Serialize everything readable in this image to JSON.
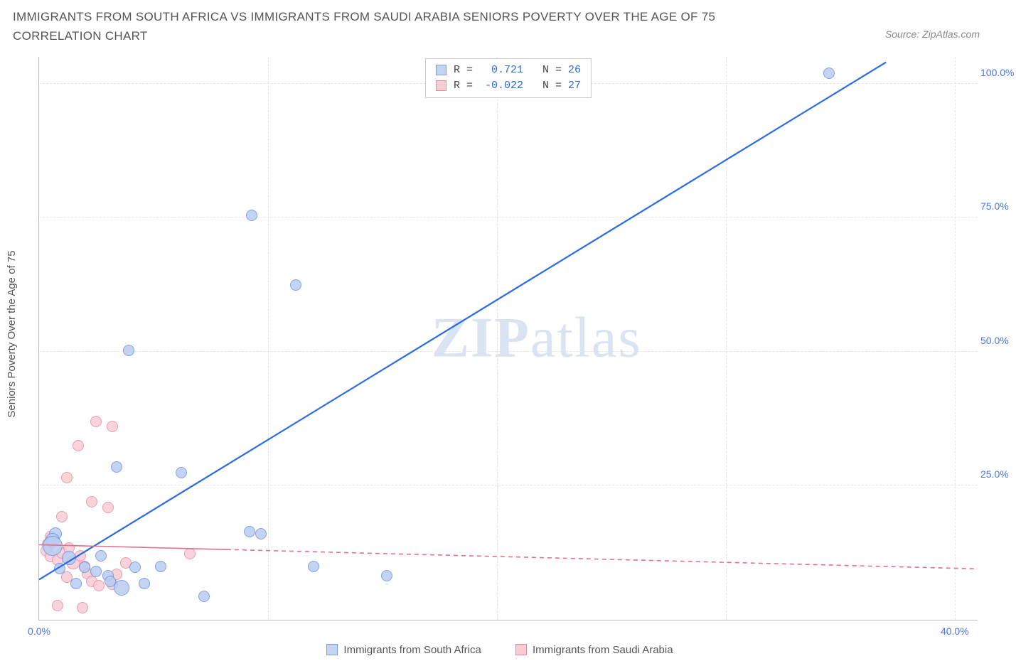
{
  "title": "IMMIGRANTS FROM SOUTH AFRICA VS IMMIGRANTS FROM SAUDI ARABIA SENIORS POVERTY OVER THE AGE OF 75 CORRELATION CHART",
  "source": "Source: ZipAtlas.com",
  "ylabel": "Seniors Poverty Over the Age of 75",
  "watermark_a": "ZIP",
  "watermark_b": "atlas",
  "chart": {
    "type": "scatter",
    "xlim": [
      0,
      41
    ],
    "ylim": [
      0,
      105
    ],
    "yticks": [
      {
        "v": 25,
        "label": "25.0%"
      },
      {
        "v": 50,
        "label": "50.0%"
      },
      {
        "v": 75,
        "label": "75.0%"
      },
      {
        "v": 100,
        "label": "100.0%"
      }
    ],
    "xticks": [
      {
        "v": 0,
        "label": "0.0%"
      },
      {
        "v": 40,
        "label": "40.0%"
      }
    ],
    "xgrid": [
      10,
      20,
      30,
      40
    ],
    "background_color": "#ffffff",
    "grid_color": "#e5e5e5",
    "axis_color": "#bbbbbb",
    "marker_border_width": 1.2,
    "series": [
      {
        "name": "Immigrants from South Africa",
        "color_fill": "#b9cdf2",
        "color_stroke": "#6a92e3",
        "legend_fill": "#c3d4f2",
        "legend_stroke": "#7ba0e6",
        "R": "0.721",
        "N": "26",
        "line": {
          "x1": 0,
          "y1": 7.5,
          "x2": 37,
          "y2": 104,
          "color": "#2b6be0",
          "width": 2.2,
          "dash": "none"
        },
        "points": [
          {
            "x": 34.5,
            "y": 102,
            "r": 8
          },
          {
            "x": 9.3,
            "y": 75.5,
            "r": 8
          },
          {
            "x": 11.2,
            "y": 62.5,
            "r": 8
          },
          {
            "x": 3.9,
            "y": 50.2,
            "r": 8
          },
          {
            "x": 3.4,
            "y": 28.5,
            "r": 8
          },
          {
            "x": 6.2,
            "y": 27.5,
            "r": 8
          },
          {
            "x": 9.2,
            "y": 16.5,
            "r": 8
          },
          {
            "x": 9.7,
            "y": 16.0,
            "r": 8
          },
          {
            "x": 0.7,
            "y": 16.0,
            "r": 9
          },
          {
            "x": 0.6,
            "y": 14.8,
            "r": 10
          },
          {
            "x": 0.6,
            "y": 13.8,
            "r": 14
          },
          {
            "x": 1.3,
            "y": 11.5,
            "r": 10
          },
          {
            "x": 2.0,
            "y": 9.8,
            "r": 8
          },
          {
            "x": 2.5,
            "y": 9.0,
            "r": 8
          },
          {
            "x": 3.0,
            "y": 8.2,
            "r": 8
          },
          {
            "x": 3.1,
            "y": 7.2,
            "r": 8
          },
          {
            "x": 4.2,
            "y": 9.8,
            "r": 8
          },
          {
            "x": 4.6,
            "y": 6.8,
            "r": 8
          },
          {
            "x": 3.6,
            "y": 6.0,
            "r": 11
          },
          {
            "x": 12.0,
            "y": 10.0,
            "r": 8
          },
          {
            "x": 15.2,
            "y": 8.2,
            "r": 8
          },
          {
            "x": 7.2,
            "y": 4.4,
            "r": 8
          },
          {
            "x": 1.6,
            "y": 6.7,
            "r": 8
          },
          {
            "x": 2.7,
            "y": 12.0,
            "r": 8
          },
          {
            "x": 0.9,
            "y": 9.5,
            "r": 8
          },
          {
            "x": 5.3,
            "y": 10.0,
            "r": 8
          }
        ]
      },
      {
        "name": "Immigrants from Saudi Arabia",
        "color_fill": "#f6cdd5",
        "color_stroke": "#e88aa0",
        "legend_fill": "#f6cdd5",
        "legend_stroke": "#e88aa0",
        "R": "-0.022",
        "N": "27",
        "line": {
          "x1": 0,
          "y1": 14.0,
          "x2": 41,
          "y2": 9.5,
          "color": "#e36f8a",
          "width": 1.6,
          "dash": "6,5",
          "solid_until": 8.2
        },
        "points": [
          {
            "x": 2.5,
            "y": 37.0,
            "r": 8
          },
          {
            "x": 3.2,
            "y": 36.0,
            "r": 8
          },
          {
            "x": 1.7,
            "y": 32.5,
            "r": 8
          },
          {
            "x": 1.2,
            "y": 26.5,
            "r": 8
          },
          {
            "x": 2.3,
            "y": 22.0,
            "r": 8
          },
          {
            "x": 3.0,
            "y": 21.0,
            "r": 8
          },
          {
            "x": 1.0,
            "y": 19.2,
            "r": 8
          },
          {
            "x": 0.5,
            "y": 15.5,
            "r": 8
          },
          {
            "x": 0.4,
            "y": 14.0,
            "r": 9
          },
          {
            "x": 0.3,
            "y": 12.8,
            "r": 8
          },
          {
            "x": 0.5,
            "y": 11.8,
            "r": 8
          },
          {
            "x": 0.8,
            "y": 11.2,
            "r": 8
          },
          {
            "x": 1.0,
            "y": 12.4,
            "r": 8
          },
          {
            "x": 1.3,
            "y": 13.4,
            "r": 8
          },
          {
            "x": 1.5,
            "y": 10.8,
            "r": 10
          },
          {
            "x": 1.8,
            "y": 12.0,
            "r": 8
          },
          {
            "x": 2.0,
            "y": 10.0,
            "r": 8
          },
          {
            "x": 2.1,
            "y": 8.6,
            "r": 8
          },
          {
            "x": 2.3,
            "y": 7.2,
            "r": 8
          },
          {
            "x": 2.6,
            "y": 6.4,
            "r": 8
          },
          {
            "x": 3.2,
            "y": 6.6,
            "r": 8
          },
          {
            "x": 3.4,
            "y": 8.5,
            "r": 8
          },
          {
            "x": 3.8,
            "y": 10.6,
            "r": 8
          },
          {
            "x": 6.6,
            "y": 12.3,
            "r": 8
          },
          {
            "x": 0.8,
            "y": 2.6,
            "r": 8
          },
          {
            "x": 1.9,
            "y": 2.2,
            "r": 8
          },
          {
            "x": 1.2,
            "y": 8.0,
            "r": 8
          }
        ]
      }
    ]
  },
  "corr_labels": {
    "R": "R =",
    "N": "N ="
  }
}
